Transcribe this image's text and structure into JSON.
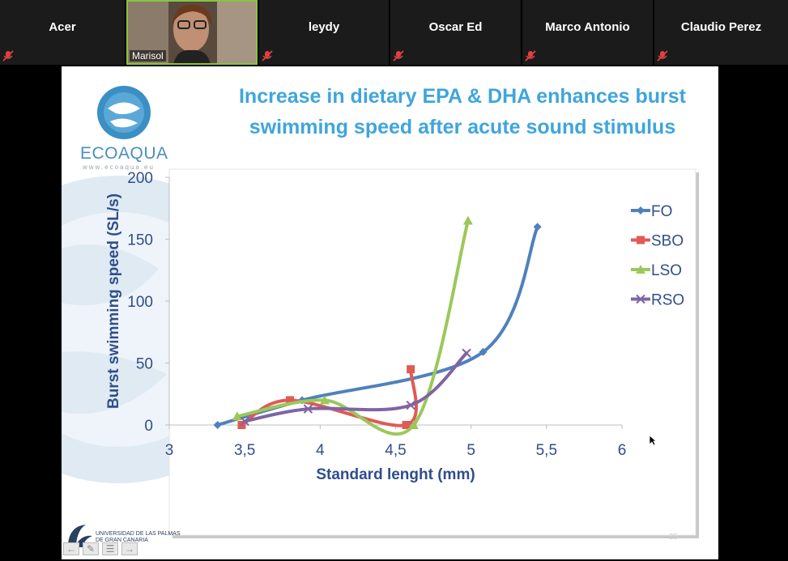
{
  "participants": [
    {
      "name": "Acer",
      "muted": true
    },
    {
      "name": "Marisol",
      "muted": false,
      "video": true
    },
    {
      "name": "leydy",
      "muted": true
    },
    {
      "name": "Oscar Ed",
      "muted": true
    },
    {
      "name": "Marco Antonio",
      "muted": true
    },
    {
      "name": "Claudio Perez",
      "muted": true
    }
  ],
  "slide": {
    "logo_word": "ECOAQUA",
    "logo_url": "www.ecoaqua.eu",
    "title": "Increase in dietary EPA & DHA enhances burst swimming speed after acute sound stimulus",
    "university": [
      "UNIVERSIDAD DE LAS PALMAS",
      "DE GRAN CANARIA"
    ],
    "page_number": "25"
  },
  "colors": {
    "accent_title": "#3fa5dc",
    "axis_text": "#2f4e8c",
    "FO": "#4f81bd",
    "SBO": "#e05a56",
    "LSO": "#9bc85a",
    "RSO": "#8064a2"
  },
  "chart_data": {
    "type": "line",
    "xlabel": "Standard lenght (mm)",
    "ylabel": "Burst swimming speed (SL/s)",
    "xlim": [
      3,
      6
    ],
    "ylim": [
      0,
      200
    ],
    "xticks": [
      "3",
      "3,5",
      "4",
      "4,5",
      "5",
      "5,5",
      "6"
    ],
    "yticks": [
      "0",
      "50",
      "100",
      "150",
      "200"
    ],
    "legend_position": "right",
    "grid": false,
    "series": [
      {
        "name": "FO",
        "marker": "diamond",
        "points": [
          [
            3.32,
            0
          ],
          [
            3.88,
            20
          ],
          [
            5.08,
            59
          ],
          [
            5.44,
            160
          ]
        ]
      },
      {
        "name": "SBO",
        "marker": "square",
        "points": [
          [
            3.48,
            0
          ],
          [
            3.8,
            20
          ],
          [
            4.57,
            0
          ],
          [
            4.6,
            45
          ]
        ]
      },
      {
        "name": "LSO",
        "marker": "triangle",
        "points": [
          [
            3.45,
            7
          ],
          [
            4.03,
            20
          ],
          [
            4.62,
            0
          ],
          [
            4.98,
            165
          ]
        ]
      },
      {
        "name": "RSO",
        "marker": "x",
        "points": [
          [
            3.5,
            3
          ],
          [
            3.92,
            13
          ],
          [
            4.6,
            16
          ],
          [
            4.97,
            58
          ]
        ]
      }
    ]
  }
}
